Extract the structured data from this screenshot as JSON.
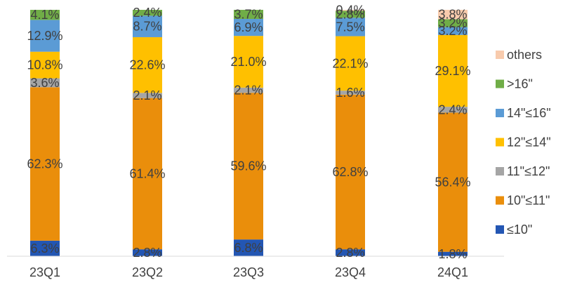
{
  "chart_data": {
    "type": "bar",
    "stacked": true,
    "normalized": true,
    "title": "",
    "xlabel": "",
    "ylabel": "",
    "ylim": [
      0,
      100
    ],
    "grid": false,
    "legend_position": "right",
    "categories": [
      "23Q1",
      "23Q2",
      "23Q3",
      "23Q4",
      "24Q1"
    ],
    "series": [
      {
        "name": "≤10\"",
        "color": "#2356b3",
        "values": [
          6.3,
          2.8,
          6.8,
          2.8,
          1.8
        ],
        "labels": [
          "6.3%",
          "2.8%",
          "6.8%",
          "2.8%",
          "1.8%"
        ]
      },
      {
        "name": "10\"≤11\"",
        "color": "#ea8e0b",
        "values": [
          62.3,
          61.4,
          59.6,
          62.8,
          56.4
        ],
        "labels": [
          "62.3%",
          "61.4%",
          "59.6%",
          "62.8%",
          "56.4%"
        ]
      },
      {
        "name": "11\"≤12\"",
        "color": "#a5a5a5",
        "values": [
          3.6,
          2.1,
          2.1,
          1.6,
          2.4
        ],
        "labels": [
          "3.6%",
          "2.1%",
          "2.1%",
          "1.6%",
          "2.4%"
        ]
      },
      {
        "name": "12\"≤14\"",
        "color": "#ffc000",
        "values": [
          10.8,
          22.6,
          21.0,
          22.1,
          29.1
        ],
        "labels": [
          "10.8%",
          "22.6%",
          "21.0%",
          "22.1%",
          "29.1%"
        ]
      },
      {
        "name": "14\"≤16\"",
        "color": "#5b9bd5",
        "values": [
          12.9,
          8.7,
          6.9,
          7.5,
          3.2
        ],
        "labels": [
          "12.9%",
          "8.7%",
          "6.9%",
          "7.5%",
          "3.2%"
        ]
      },
      {
        "name": ">16\"",
        "color": "#70ad47",
        "values": [
          4.1,
          2.4,
          3.7,
          2.8,
          3.2
        ],
        "labels": [
          "4.1%",
          "2.4%",
          "3.7%",
          "2.8%",
          "3.2%"
        ]
      },
      {
        "name": "others",
        "color": "#f8cbad",
        "values": [
          0.0,
          0.0,
          0.0,
          0.4,
          3.8
        ],
        "labels": [
          "",
          "",
          "",
          "0.4%",
          "3.8%"
        ]
      }
    ]
  }
}
